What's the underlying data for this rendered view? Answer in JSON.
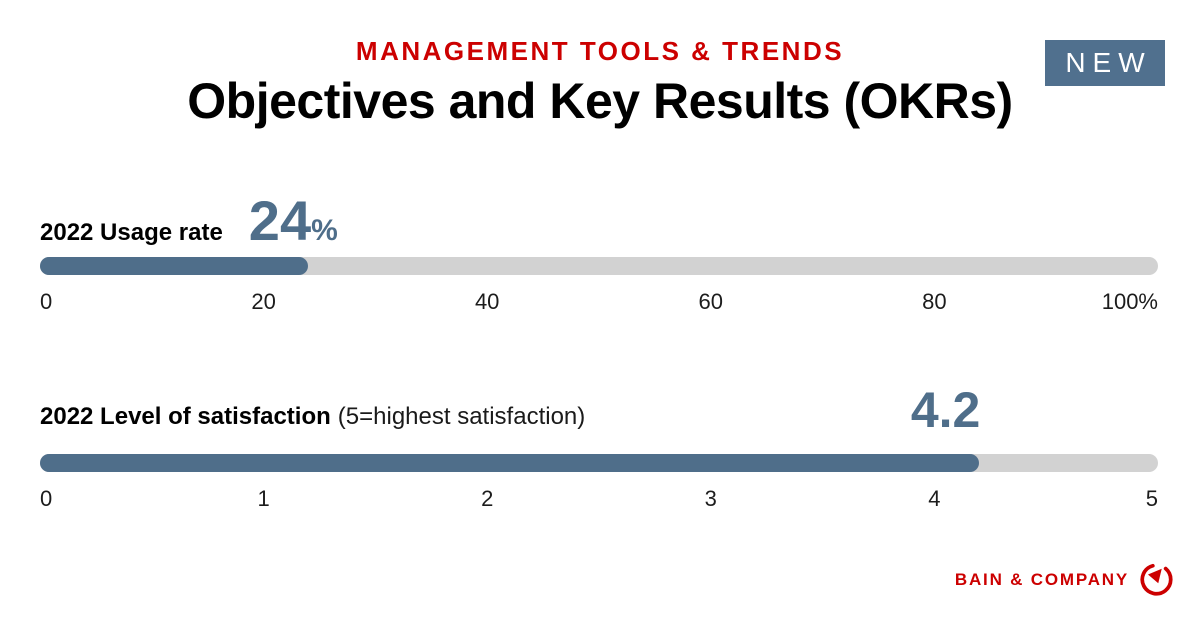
{
  "page": {
    "kicker": "MANAGEMENT TOOLS & TRENDS",
    "title": "Objectives and Key Results (OKRs)",
    "badge": "NEW",
    "brand": "BAIN & COMPANY",
    "colors": {
      "brand_red": "#cc0000",
      "accent_blue": "#4f6e8a",
      "badge_blue": "#50708e",
      "track_gray": "#d2d2d2"
    }
  },
  "chart_data": [
    {
      "type": "bar",
      "title": "2022 Usage rate",
      "value": 24,
      "value_label": "24",
      "unit": "%",
      "xlim": [
        0,
        100
      ],
      "fill_percent": 24,
      "ticks": [
        "0",
        "20",
        "40",
        "60",
        "80",
        "100%"
      ]
    },
    {
      "type": "bar",
      "title": "2022 Level of satisfaction",
      "subtitle": "(5=highest satisfaction)",
      "value": 4.2,
      "value_label": "4.2",
      "xlim": [
        0,
        5
      ],
      "fill_percent": 84,
      "ticks": [
        "0",
        "1",
        "2",
        "3",
        "4",
        "5"
      ]
    }
  ]
}
